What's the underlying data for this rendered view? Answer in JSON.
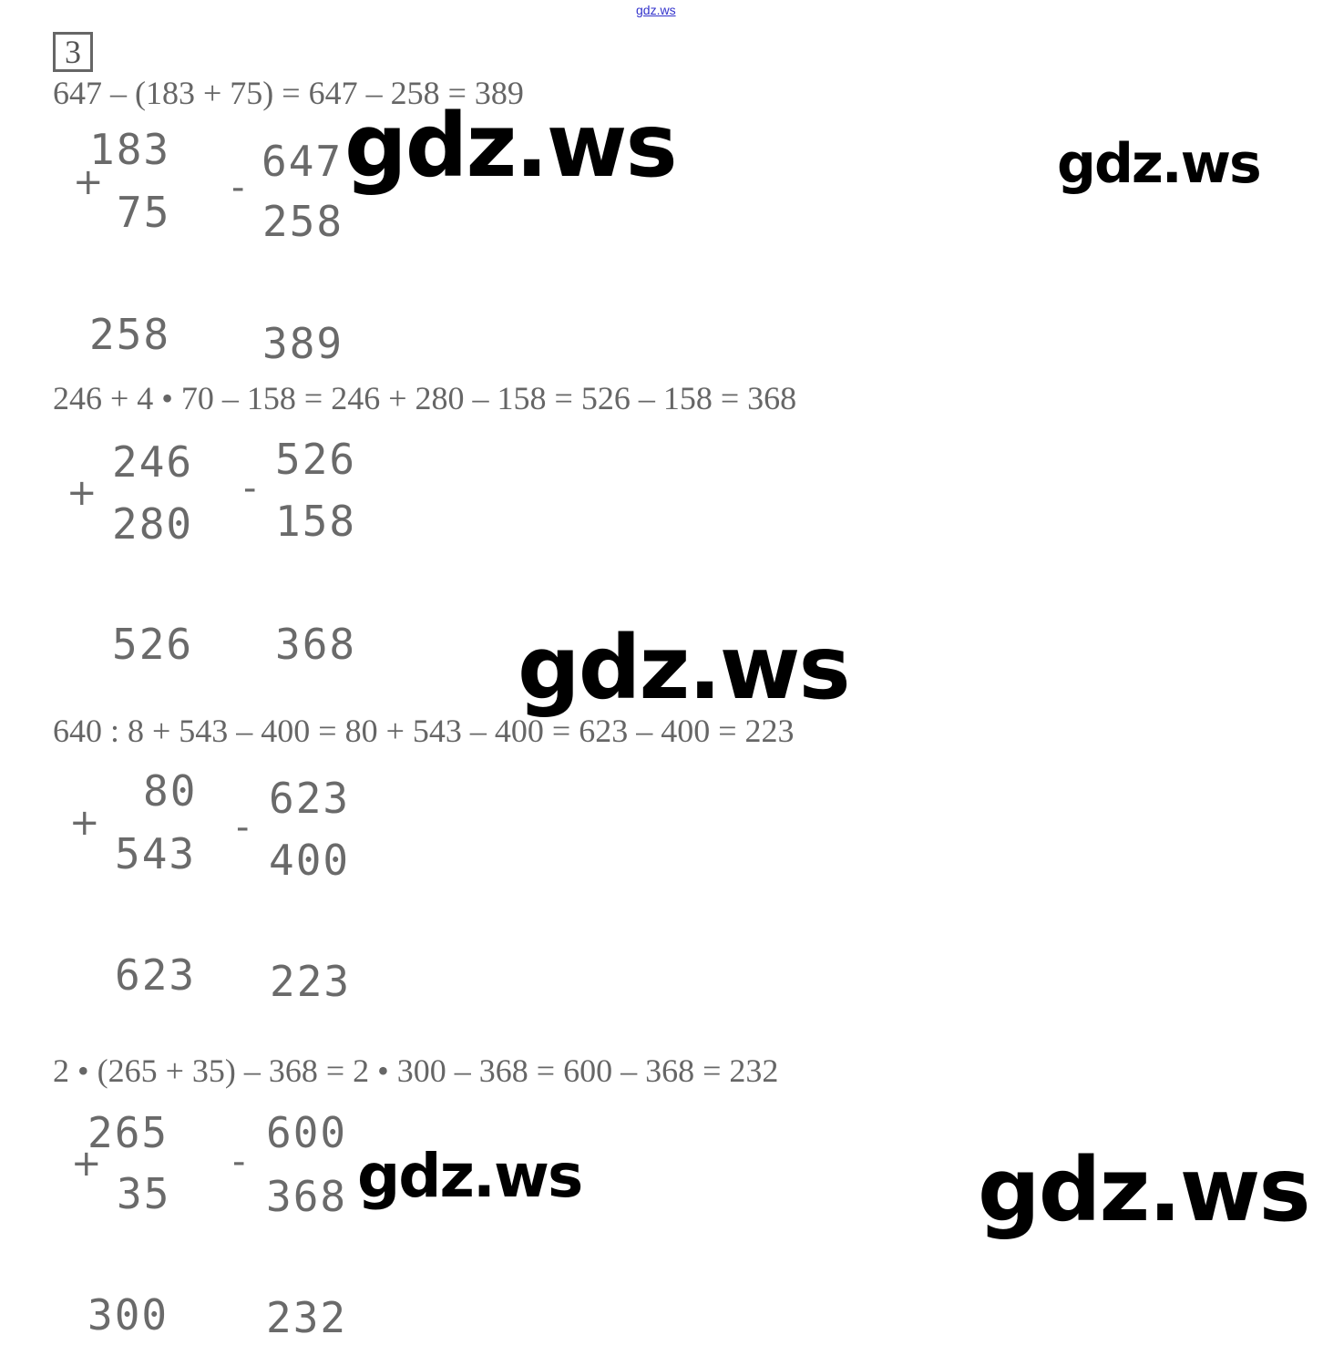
{
  "header_link": "gdz.ws",
  "task_number": "3",
  "watermark": "gdz.ws",
  "problems": [
    {
      "equation": "647 – (183 + 75) = 647 – 258 = 389",
      "add": {
        "a": "183",
        "b": "75",
        "result": "258"
      },
      "sub": {
        "a": "647",
        "b": "258",
        "result": "389"
      }
    },
    {
      "equation": "246 + 4 • 70 – 158 = 246 + 280 – 158 = 526 – 158 = 368",
      "add": {
        "a": "246",
        "b": "280",
        "result": "526"
      },
      "sub": {
        "a": "526",
        "b": "158",
        "result": "368"
      }
    },
    {
      "equation": "640 : 8 + 543 – 400 = 80 + 543 – 400 = 623 – 400 = 223",
      "add": {
        "a": "80",
        "b": "543",
        "result": "623"
      },
      "sub": {
        "a": "623",
        "b": "400",
        "result": "223"
      }
    },
    {
      "equation": "2 • (265 + 35) – 368 = 2 • 300 – 368 = 600 – 368 = 232",
      "add": {
        "a": "265",
        "b": "35",
        "result": "300"
      },
      "sub": {
        "a": "600",
        "b": "368",
        "result": "232"
      }
    }
  ],
  "operators": {
    "plus": "+",
    "minus": "-"
  }
}
